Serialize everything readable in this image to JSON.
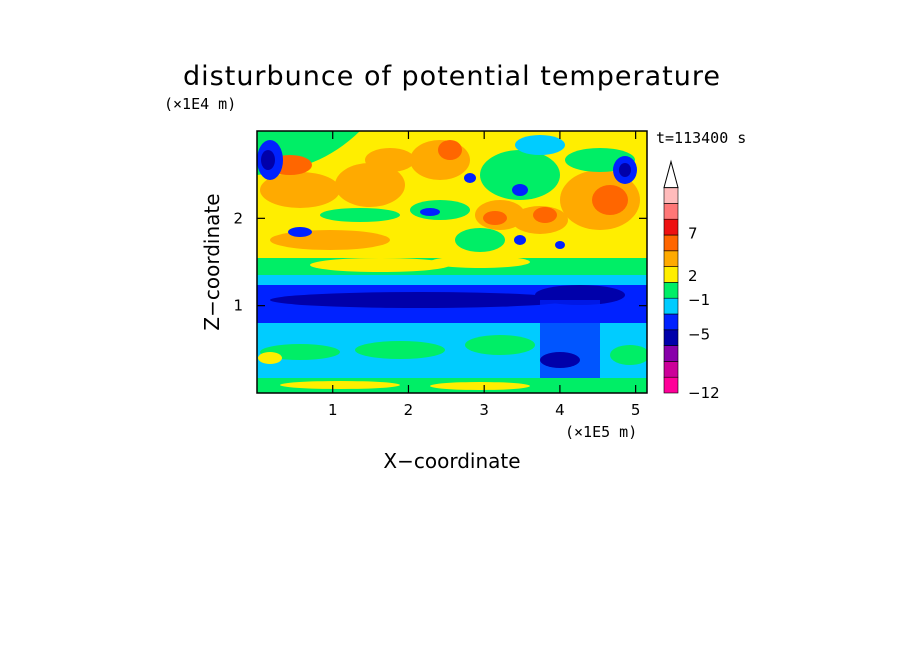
{
  "chart_data": {
    "type": "heatmap",
    "title": "disturbunce of potential temperature",
    "xlabel": "X−coordinate",
    "ylabel": "Z−coordinate",
    "x_unit": "(×1E5 m)",
    "y_unit": "(×1E4 m)",
    "time_label": "t=113400 s",
    "xlim": [
      0,
      5.15
    ],
    "ylim": [
      0,
      3.0
    ],
    "x_ticks": [
      1,
      2,
      3,
      4,
      5
    ],
    "y_ticks": [
      1,
      2
    ],
    "x_tick_labels": [
      "1",
      "2",
      "3",
      "4",
      "5"
    ],
    "y_tick_labels": [
      "1",
      "2"
    ],
    "colorbar": {
      "colors": [
        "#ff0099",
        "#cc0099",
        "#8800aa",
        "#0000aa",
        "#0022ff",
        "#00ccff",
        "#00ee66",
        "#ffee00",
        "#ffaa00",
        "#ff6600",
        "#ee1111",
        "#ff7777",
        "#ffbbbb"
      ],
      "tick_values": [
        7,
        2,
        -1,
        -5,
        -12
      ],
      "tick_labels": [
        "7",
        "2",
        "−1",
        "−5",
        "−12"
      ],
      "extend_top": true
    },
    "bands": [
      {
        "z_from": 0.0,
        "z_to": 0.2,
        "level": "green/yellow"
      },
      {
        "z_from": 0.2,
        "z_to": 0.7,
        "level": "cyan/green"
      },
      {
        "z_from": 0.7,
        "z_to": 0.85,
        "level": "cyan"
      },
      {
        "z_from": 0.85,
        "z_to": 1.25,
        "level": "blue"
      },
      {
        "z_from": 1.25,
        "z_to": 1.45,
        "level": "cyan/green"
      },
      {
        "z_from": 1.45,
        "z_to": 3.0,
        "level": "yellow/orange"
      }
    ]
  }
}
